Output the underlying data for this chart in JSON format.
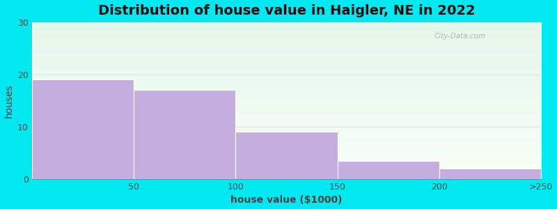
{
  "title": "Distribution of house value in Haigler, NE in 2022",
  "xlabel": "house value ($1000)",
  "ylabel": "houses",
  "xtick_labels": [
    "50",
    "100",
    "150",
    "200",
    ">250"
  ],
  "values": [
    19,
    17,
    9,
    3.5,
    2
  ],
  "bar_color": "#c4aee0",
  "ylim": [
    0,
    30
  ],
  "yticks": [
    0,
    10,
    20,
    30
  ],
  "background_outer": "#00e8f0",
  "bg_top_color": "#e6f5eb",
  "bg_bottom_color": "#f8fff8",
  "grid_color": "#e0e8e0",
  "title_fontsize": 14,
  "axis_label_fontsize": 10,
  "tick_fontsize": 9
}
